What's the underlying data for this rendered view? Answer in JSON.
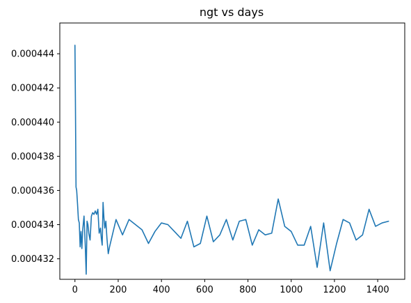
{
  "chart_data": {
    "type": "line",
    "title": "ngt vs days",
    "xlabel": "",
    "ylabel": "",
    "xlim": [
      -70,
      1525
    ],
    "ylim": [
      0.0004308,
      0.0004458
    ],
    "grid": false,
    "line_color": "#1f77b4",
    "xticks": [
      0,
      200,
      400,
      600,
      800,
      1000,
      1200,
      1400
    ],
    "xtick_labels": [
      "0",
      "200",
      "400",
      "600",
      "800",
      "1000",
      "1200",
      "1400"
    ],
    "yticks": [
      0.000432,
      0.000434,
      0.000436,
      0.000438,
      0.00044,
      0.000442,
      0.000444
    ],
    "ytick_labels": [
      "0.000432",
      "0.000434",
      "0.000436",
      "0.000438",
      "0.000440",
      "0.000442",
      "0.000444"
    ],
    "series": [
      {
        "name": "",
        "x": [
          0,
          1,
          2,
          5,
          8,
          12,
          16,
          20,
          24,
          28,
          32,
          36,
          42,
          48,
          52,
          56,
          60,
          64,
          70,
          76,
          82,
          88,
          94,
          100,
          106,
          112,
          118,
          122,
          126,
          130,
          134,
          138,
          143,
          148,
          154,
          160,
          190,
          220,
          250,
          280,
          310,
          340,
          370,
          400,
          430,
          460,
          490,
          520,
          550,
          580,
          610,
          640,
          670,
          700,
          730,
          760,
          790,
          820,
          850,
          880,
          910,
          940,
          970,
          1000,
          1030,
          1060,
          1090,
          1120,
          1150,
          1180,
          1210,
          1240,
          1270,
          1300,
          1330,
          1360,
          1390,
          1420,
          1450
        ],
        "y": [
          0.0004445,
          0.000443,
          0.0004415,
          0.0004362,
          0.000436,
          0.0004352,
          0.0004343,
          0.0004341,
          0.0004327,
          0.0004336,
          0.0004326,
          0.0004337,
          0.0004345,
          0.0004327,
          0.0004311,
          0.0004342,
          0.000434,
          0.0004335,
          0.0004331,
          0.0004345,
          0.0004347,
          0.0004346,
          0.0004348,
          0.0004346,
          0.0004349,
          0.0004335,
          0.0004338,
          0.0004332,
          0.0004328,
          0.0004353,
          0.0004344,
          0.0004338,
          0.0004342,
          0.0004332,
          0.0004323,
          0.0004327,
          0.0004343,
          0.0004334,
          0.0004343,
          0.000434,
          0.0004337,
          0.0004329,
          0.0004336,
          0.0004341,
          0.000434,
          0.0004336,
          0.0004332,
          0.0004342,
          0.0004327,
          0.0004329,
          0.0004345,
          0.000433,
          0.0004334,
          0.0004343,
          0.0004331,
          0.0004342,
          0.0004343,
          0.0004328,
          0.0004337,
          0.0004334,
          0.0004335,
          0.0004355,
          0.0004339,
          0.0004336,
          0.0004328,
          0.0004328,
          0.0004339,
          0.0004315,
          0.0004341,
          0.0004313,
          0.0004329,
          0.0004343,
          0.0004341,
          0.0004331,
          0.0004334,
          0.0004349,
          0.0004339,
          0.0004341,
          0.0004342
        ]
      }
    ]
  }
}
